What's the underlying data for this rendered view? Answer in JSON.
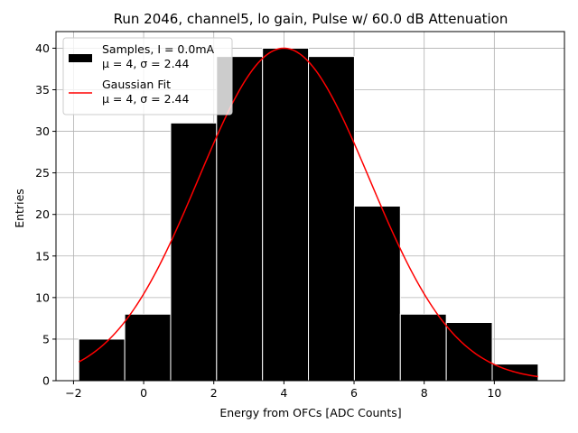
{
  "chart_data": {
    "type": "bar",
    "title": "Run 2046, channel5, lo gain, Pulse w/ 60.0 dB Attenuation",
    "xlabel": "Energy from OFCs [ADC Counts]",
    "ylabel": "Entries",
    "xlim": [
      -2.5,
      12.0
    ],
    "ylim": [
      0,
      42
    ],
    "xticks": [
      -2,
      0,
      2,
      4,
      6,
      8,
      10
    ],
    "yticks": [
      0,
      5,
      10,
      15,
      20,
      25,
      30,
      35,
      40
    ],
    "grid": true,
    "legend_position": "top-left",
    "bin_edges": [
      -1.85,
      -0.54,
      0.77,
      2.08,
      3.39,
      4.7,
      6.01,
      7.32,
      8.63,
      9.94,
      11.25
    ],
    "values": [
      5,
      8,
      31,
      39,
      40,
      39,
      21,
      8,
      7,
      2
    ],
    "series": [
      {
        "name": "Samples, I = 0.0mA",
        "stats": "μ = 4, σ = 2.44",
        "kind": "histogram",
        "color": "#000000"
      },
      {
        "name": "Gaussian Fit",
        "stats": "μ = 4, σ = 2.44",
        "kind": "line",
        "color": "#ff0000",
        "amplitude": 40,
        "mu": 4,
        "sigma": 2.44,
        "x_range": [
          -1.85,
          11.25
        ]
      }
    ]
  }
}
